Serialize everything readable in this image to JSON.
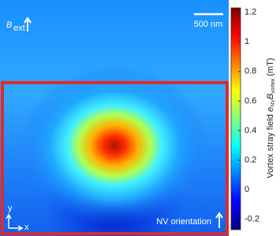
{
  "chart_data": {
    "type": "colorbar",
    "colorbar_label": [
      "Vortex stray field ",
      "e",
      "NV",
      "B",
      "vortex",
      " (mT)"
    ],
    "clim": [
      -0.27,
      1.23
    ],
    "ticks": [
      1.2,
      1,
      0.8,
      0.6,
      0.4,
      0.2,
      0,
      -0.2
    ],
    "colors": [
      "#00007f",
      "#0000ff",
      "#007fff",
      "#00ffff",
      "#7fff7f",
      "#ffff00",
      "#ff7f00",
      "#ff0000",
      "#7f0000"
    ],
    "annotations": {
      "field": "B",
      "field_sub": "ext",
      "scale_bar": "500 nm",
      "nv": "NV orientation",
      "axis_y": "y",
      "axis_x": "x"
    }
  }
}
